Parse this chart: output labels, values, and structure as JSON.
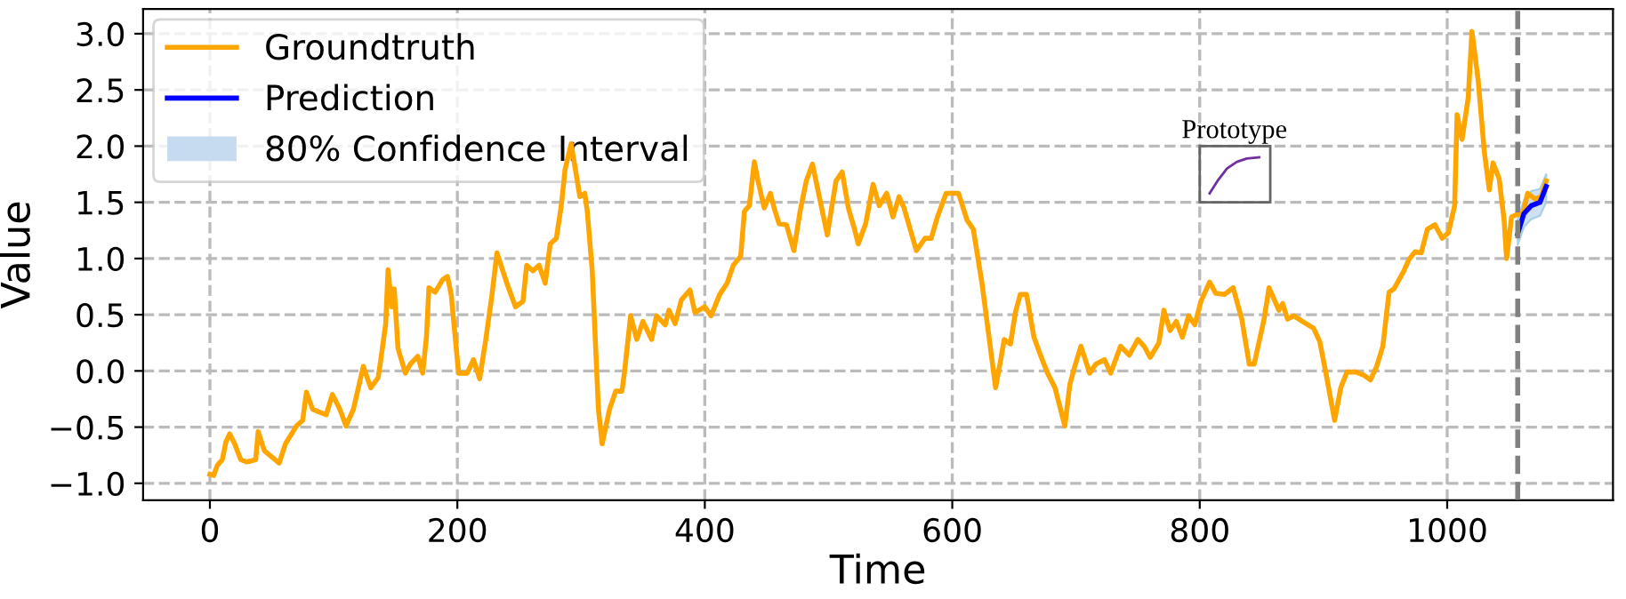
{
  "chart_data": {
    "type": "line",
    "xlabel": "Time",
    "ylabel": "Value",
    "xlim": [
      -54,
      1134
    ],
    "ylim": [
      -1.15,
      3.22
    ],
    "xticks": [
      0,
      200,
      400,
      600,
      800,
      1000
    ],
    "yticks": [
      {
        "value": -1.0,
        "label": "−1.0"
      },
      {
        "value": -0.5,
        "label": "−0.5"
      },
      {
        "value": 0.0,
        "label": "0.0"
      },
      {
        "value": 0.5,
        "label": "0.5"
      },
      {
        "value": 1.0,
        "label": "1.0"
      },
      {
        "value": 1.5,
        "label": "1.5"
      },
      {
        "value": 2.0,
        "label": "2.0"
      },
      {
        "value": 2.5,
        "label": "2.5"
      },
      {
        "value": 3.0,
        "label": "3.0"
      }
    ],
    "grid": true,
    "legend": "top left",
    "line_style": "solid",
    "annotations": [
      "Prototype",
      "80% Confidence Interval"
    ],
    "ref_lines": [
      {
        "axis": "x",
        "value": 1057,
        "label": null,
        "color": "#808080",
        "line_style": "dashed"
      }
    ],
    "series": [
      {
        "name": "Groundtruth",
        "type": "line",
        "color": "#ffa500",
        "x": [
          0,
          3,
          6,
          10,
          13,
          16,
          20,
          25,
          30,
          37,
          39,
          44,
          56,
          61,
          70,
          75,
          78,
          83,
          87,
          94,
          99,
          105,
          110,
          116,
          124,
          130,
          136,
          138,
          142,
          144,
          147,
          149,
          152,
          158,
          162,
          168,
          172,
          175,
          177,
          182,
          188,
          192,
          195,
          201,
          208,
          213,
          218,
          223,
          228,
          232,
          240,
          247,
          253,
          256,
          261,
          266,
          271,
          275,
          280,
          284,
          287,
          292,
          299,
          303,
          305,
          309,
          314,
          317,
          323,
          328,
          333,
          335,
          340,
          345,
          350,
          357,
          361,
          368,
          371,
          376,
          381,
          388,
          392,
          400,
          405,
          412,
          418,
          423,
          429,
          432,
          436,
          440,
          443,
          448,
          453,
          456,
          460,
          466,
          472,
          477,
          482,
          487,
          491,
          499,
          506,
          511,
          516,
          521,
          524,
          530,
          536,
          541,
          547,
          552,
          557,
          561,
          566,
          571,
          578,
          583,
          588,
          595,
          605,
          612,
          617,
          624,
          629,
          635,
          639,
          642,
          647,
          651,
          655,
          660,
          666,
          672,
          677,
          683,
          691,
          695,
          699,
          704,
          711,
          716,
          723,
          728,
          736,
          743,
          750,
          755,
          760,
          767,
          771,
          776,
          781,
          786,
          791,
          796,
          801,
          808,
          813,
          820,
          827,
          834,
          840,
          844,
          852,
          856,
          864,
          867,
          871,
          876,
          883,
          892,
          897,
          902,
          909,
          914,
          919,
          926,
          933,
          938,
          943,
          948,
          953,
          957,
          965,
          969,
          974,
          979,
          984,
          990,
          996,
          1001,
          1006,
          1008,
          1012,
          1017,
          1020,
          1025,
          1030,
          1034,
          1037,
          1042,
          1046,
          1048,
          1052,
          1056,
          1061,
          1065,
          1071,
          1076,
          1080
        ],
        "values": [
          -0.92,
          -0.93,
          -0.84,
          -0.79,
          -0.63,
          -0.56,
          -0.65,
          -0.79,
          -0.81,
          -0.79,
          -0.54,
          -0.71,
          -0.82,
          -0.65,
          -0.49,
          -0.44,
          -0.19,
          -0.34,
          -0.36,
          -0.39,
          -0.21,
          -0.34,
          -0.49,
          -0.34,
          0.04,
          -0.15,
          -0.06,
          0.09,
          0.41,
          0.9,
          0.57,
          0.73,
          0.2,
          -0.02,
          0.06,
          0.13,
          -0.02,
          0.3,
          0.74,
          0.7,
          0.81,
          0.84,
          0.68,
          -0.02,
          -0.02,
          0.1,
          -0.07,
          0.28,
          0.68,
          1.05,
          0.78,
          0.57,
          0.62,
          0.94,
          0.89,
          0.94,
          0.78,
          1.13,
          1.18,
          1.47,
          1.79,
          2.02,
          1.55,
          1.58,
          1.42,
          0.89,
          -0.34,
          -0.65,
          -0.34,
          -0.18,
          -0.18,
          -0.02,
          0.49,
          0.28,
          0.44,
          0.28,
          0.49,
          0.41,
          0.54,
          0.42,
          0.63,
          0.72,
          0.52,
          0.57,
          0.49,
          0.68,
          0.78,
          0.94,
          1.02,
          1.42,
          1.47,
          1.86,
          1.69,
          1.45,
          1.58,
          1.45,
          1.31,
          1.3,
          1.07,
          1.42,
          1.69,
          1.84,
          1.63,
          1.21,
          1.69,
          1.77,
          1.45,
          1.26,
          1.13,
          1.31,
          1.66,
          1.47,
          1.58,
          1.37,
          1.55,
          1.45,
          1.26,
          1.07,
          1.18,
          1.18,
          1.37,
          1.58,
          1.58,
          1.34,
          1.26,
          0.78,
          0.36,
          -0.15,
          0.09,
          0.28,
          0.24,
          0.52,
          0.68,
          0.68,
          0.3,
          0.12,
          -0.02,
          -0.15,
          -0.49,
          -0.12,
          0.04,
          0.22,
          -0.02,
          0.06,
          0.1,
          -0.02,
          0.22,
          0.14,
          0.28,
          0.22,
          0.12,
          0.25,
          0.54,
          0.36,
          0.44,
          0.3,
          0.49,
          0.41,
          0.62,
          0.79,
          0.69,
          0.68,
          0.74,
          0.46,
          0.06,
          0.06,
          0.46,
          0.74,
          0.54,
          0.6,
          0.46,
          0.49,
          0.44,
          0.38,
          0.26,
          -0.02,
          -0.44,
          -0.15,
          -0.01,
          -0.01,
          -0.04,
          -0.08,
          0.04,
          0.22,
          0.7,
          0.73,
          0.89,
          0.99,
          1.06,
          1.05,
          1.26,
          1.3,
          1.18,
          1.23,
          1.47,
          2.28,
          2.06,
          2.43,
          3.02,
          2.59,
          1.95,
          1.61,
          1.85,
          1.71,
          1.34,
          1.0,
          1.37,
          1.39,
          1.39,
          1.58,
          1.53,
          1.55,
          1.69
        ]
      },
      {
        "name": "Prediction",
        "color": "#0000ff",
        "x": [
          1057,
          1062,
          1068,
          1075,
          1080
        ],
        "values": [
          1.22,
          1.4,
          1.47,
          1.5,
          1.64
        ],
        "lower": [
          1.12,
          1.28,
          1.35,
          1.38,
          1.5
        ],
        "upper": [
          1.35,
          1.52,
          1.6,
          1.62,
          1.75
        ]
      }
    ]
  }
}
